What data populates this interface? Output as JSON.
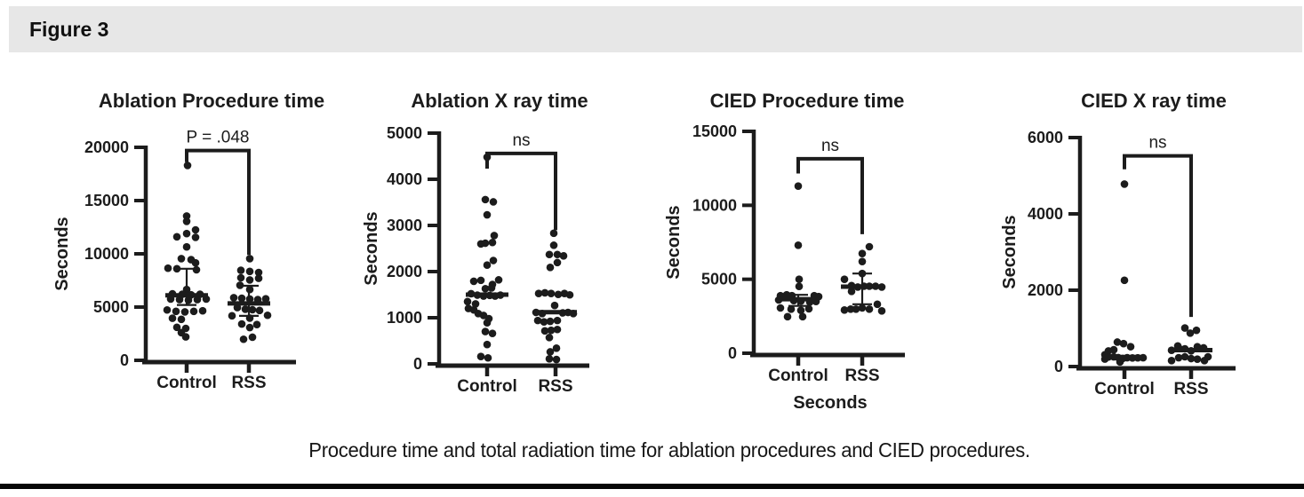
{
  "figure": {
    "label": "Figure 3",
    "caption": "Procedure time and total radiation time for ablation procedures and CIED procedures."
  },
  "colors": {
    "ink": "#1c1c1c",
    "header_band": "#e7e7e7",
    "background": "#ffffff",
    "bottom_rule": "#060606"
  },
  "chart_data": [
    {
      "type": "scatter",
      "title": "Ablation Procedure time",
      "ylabel": "Seconds",
      "xlabel": null,
      "ylim": [
        0,
        20000
      ],
      "yticks": [
        0,
        5000,
        10000,
        15000,
        20000
      ],
      "categories": [
        "Control",
        "RSS"
      ],
      "significance": "P = .048",
      "bracket": {
        "top": 19700,
        "left_end": 18600,
        "right_end": 9900
      },
      "series": [
        {
          "name": "Control",
          "median": 6100,
          "q1": 5200,
          "q3": 8600,
          "points": [
            [
              1,
              18300
            ],
            [
              0,
              13550
            ],
            [
              0,
              13050
            ],
            [
              10,
              12250
            ],
            [
              0,
              11900
            ],
            [
              -11,
              11600
            ],
            [
              10,
              11550
            ],
            [
              0,
              10650
            ],
            [
              -6,
              9550
            ],
            [
              5,
              9450
            ],
            [
              10,
              9150
            ],
            [
              -21,
              8650
            ],
            [
              -11,
              8600
            ],
            [
              11,
              8500
            ],
            [
              0,
              6650
            ],
            [
              -16,
              6250
            ],
            [
              -5,
              6200
            ],
            [
              5,
              6150
            ],
            [
              15,
              6200
            ],
            [
              -18,
              5750
            ],
            [
              -8,
              5700
            ],
            [
              2,
              5650
            ],
            [
              12,
              5700
            ],
            [
              22,
              5750
            ],
            [
              -22,
              4730
            ],
            [
              -12,
              4600
            ],
            [
              -2,
              4550
            ],
            [
              8,
              4600
            ],
            [
              18,
              4650
            ],
            [
              -16,
              3950
            ],
            [
              -6,
              3850
            ],
            [
              -11,
              3100
            ],
            [
              -1,
              3000
            ],
            [
              -6,
              2600
            ],
            [
              -1,
              2200
            ]
          ]
        },
        {
          "name": "RSS",
          "median": 5340,
          "q1": 4180,
          "q3": 7000,
          "points": [
            [
              1,
              9550
            ],
            [
              -9,
              8450
            ],
            [
              1,
              8350
            ],
            [
              11,
              8250
            ],
            [
              -9,
              7750
            ],
            [
              11,
              7700
            ],
            [
              1,
              7550
            ],
            [
              -10,
              7050
            ],
            [
              1,
              6650
            ],
            [
              -17,
              5880
            ],
            [
              -8,
              5830
            ],
            [
              1,
              5760
            ],
            [
              10,
              5700
            ],
            [
              19,
              5780
            ],
            [
              -13,
              4950
            ],
            [
              -4,
              4800
            ],
            [
              4,
              4750
            ],
            [
              12,
              4680
            ],
            [
              -19,
              4180
            ],
            [
              21,
              4230
            ],
            [
              1,
              3960
            ],
            [
              -8,
              3410
            ],
            [
              9,
              3360
            ],
            [
              1,
              3080
            ],
            [
              4,
              2170
            ],
            [
              -6,
              1980
            ]
          ]
        }
      ]
    },
    {
      "type": "scatter",
      "title": "Ablation X ray time",
      "ylabel": "Seconds",
      "xlabel": null,
      "ylim": [
        0,
        5000
      ],
      "yticks": [
        0,
        1000,
        2000,
        3000,
        4000,
        5000
      ],
      "categories": [
        "Control",
        "RSS"
      ],
      "significance": "ns",
      "bracket": {
        "top": 4560,
        "left_end": 4230,
        "right_end": 2900
      },
      "series": [
        {
          "name": "Control",
          "median": 1500,
          "q1": null,
          "q3": null,
          "points": [
            [
              0,
              4480
            ],
            [
              -2,
              3560
            ],
            [
              7,
              3510
            ],
            [
              0,
              3230
            ],
            [
              8,
              2780
            ],
            [
              -7,
              2600
            ],
            [
              -2,
              2615
            ],
            [
              6,
              2630
            ],
            [
              7,
              2240
            ],
            [
              0,
              2140
            ],
            [
              -15,
              1790
            ],
            [
              -7,
              1810
            ],
            [
              13,
              1820
            ],
            [
              6,
              1720
            ],
            [
              -2,
              1630
            ],
            [
              5,
              1645
            ],
            [
              -18,
              1520
            ],
            [
              -11,
              1490
            ],
            [
              -4,
              1470
            ],
            [
              3,
              1485
            ],
            [
              9,
              1470
            ],
            [
              15,
              1490
            ],
            [
              -22,
              1350
            ],
            [
              -13,
              1300
            ],
            [
              -21,
              1200
            ],
            [
              -15,
              1170
            ],
            [
              -10,
              1090
            ],
            [
              -4,
              1050
            ],
            [
              2,
              980
            ],
            [
              0,
              890
            ],
            [
              -2,
              700
            ],
            [
              6,
              660
            ],
            [
              0,
              420
            ],
            [
              -7,
              160
            ],
            [
              1,
              130
            ]
          ]
        },
        {
          "name": "RSS",
          "median": 1120,
          "q1": null,
          "q3": null,
          "points": [
            [
              -2,
              2830
            ],
            [
              -2,
              2570
            ],
            [
              -7,
              2370
            ],
            [
              2,
              2370
            ],
            [
              9,
              2340
            ],
            [
              2,
              2195
            ],
            [
              -6,
              2090
            ],
            [
              -19,
              1525
            ],
            [
              -12,
              1540
            ],
            [
              -5,
              1525
            ],
            [
              3,
              1505
            ],
            [
              10,
              1525
            ],
            [
              16,
              1495
            ],
            [
              -1,
              1265
            ],
            [
              -22,
              1115
            ],
            [
              -15,
              1090
            ],
            [
              8,
              1105
            ],
            [
              14,
              1115
            ],
            [
              20,
              1090
            ],
            [
              -20,
              940
            ],
            [
              -13,
              910
            ],
            [
              -6,
              922
            ],
            [
              2,
              940
            ],
            [
              -12,
              715
            ],
            [
              -5,
              727
            ],
            [
              2,
              745
            ],
            [
              -7,
              570
            ],
            [
              1,
              340
            ],
            [
              -6,
              260
            ],
            [
              -7,
              110
            ],
            [
              1,
              95
            ]
          ]
        }
      ]
    },
    {
      "type": "scatter",
      "title": "CIED Procedure time",
      "ylabel": "Seconds",
      "xlabel": "Seconds",
      "ylim": [
        0,
        15000
      ],
      "yticks": [
        0,
        5000,
        10000,
        15000
      ],
      "categories": [
        "Control",
        "RSS"
      ],
      "significance": "ns",
      "bracket": {
        "top": 13150,
        "left_end": 12150,
        "right_end": 8050
      },
      "series": [
        {
          "name": "Control",
          "median": 3650,
          "q1": 3200,
          "q3": 3950,
          "points": [
            [
              0,
              11300
            ],
            [
              0,
              7300
            ],
            [
              1,
              5000
            ],
            [
              1,
              4520
            ],
            [
              -20,
              3890
            ],
            [
              -13,
              3950
            ],
            [
              -7,
              3890
            ],
            [
              18,
              3890
            ],
            [
              23,
              3830
            ],
            [
              -22,
              3600
            ],
            [
              -5,
              3560
            ],
            [
              3,
              3520
            ],
            [
              13,
              3450
            ],
            [
              20,
              3500
            ],
            [
              -20,
              3060
            ],
            [
              -8,
              2980
            ],
            [
              3,
              2900
            ],
            [
              12,
              3000
            ],
            [
              -12,
              2470
            ],
            [
              5,
              2470
            ]
          ]
        },
        {
          "name": "RSS",
          "median": 4500,
          "q1": 3310,
          "q3": 5390,
          "points": [
            [
              8,
              7200
            ],
            [
              0,
              6740
            ],
            [
              0,
              6200
            ],
            [
              0,
              5390
            ],
            [
              -20,
              5000
            ],
            [
              -12,
              4570
            ],
            [
              -5,
              4475
            ],
            [
              2,
              4530
            ],
            [
              8,
              4530
            ],
            [
              15,
              4530
            ],
            [
              22,
              4475
            ],
            [
              -12,
              4180
            ],
            [
              -20,
              2920
            ],
            [
              -13,
              2980
            ],
            [
              -7,
              2980
            ],
            [
              0,
              3060
            ],
            [
              8,
              2980
            ],
            [
              17,
              3310
            ],
            [
              22,
              2860
            ]
          ]
        }
      ]
    },
    {
      "type": "scatter",
      "title": "CIED X ray time",
      "ylabel": "Seconds",
      "xlabel": null,
      "ylim": [
        0,
        6000
      ],
      "yticks": [
        0,
        2000,
        4000,
        6000
      ],
      "categories": [
        "Control",
        "RSS"
      ],
      "significance": "ns",
      "bracket": {
        "top": 5520,
        "left_end": 5170,
        "right_end": 1300
      },
      "series": [
        {
          "name": "Control",
          "median": 250,
          "q1": null,
          "q3": null,
          "points": [
            [
              0,
              4780
            ],
            [
              0,
              2260
            ],
            [
              -8,
              640
            ],
            [
              -1,
              600
            ],
            [
              7,
              520
            ],
            [
              -12,
              440
            ],
            [
              -18,
              410
            ],
            [
              -22,
              310
            ],
            [
              -18,
              250
            ],
            [
              -12,
              255
            ],
            [
              -7,
              235
            ],
            [
              -2,
              210
            ],
            [
              3,
              230
            ],
            [
              9,
              225
            ],
            [
              15,
              228
            ],
            [
              21,
              230
            ],
            [
              -22,
              195
            ],
            [
              -5,
              120
            ]
          ]
        },
        {
          "name": "RSS",
          "median": 430,
          "q1": null,
          "q3": null,
          "points": [
            [
              -7,
              1010
            ],
            [
              6,
              950
            ],
            [
              -1,
              875
            ],
            [
              -15,
              540
            ],
            [
              7,
              520
            ],
            [
              -14,
              490
            ],
            [
              14,
              490
            ],
            [
              -7,
              465
            ],
            [
              -22,
              425
            ],
            [
              0,
              411
            ],
            [
              19,
              256
            ],
            [
              -7,
              256
            ],
            [
              -14,
              232
            ],
            [
              0,
              209
            ],
            [
              7,
              194
            ],
            [
              -22,
              155
            ],
            [
              15,
              155
            ]
          ]
        }
      ]
    }
  ]
}
